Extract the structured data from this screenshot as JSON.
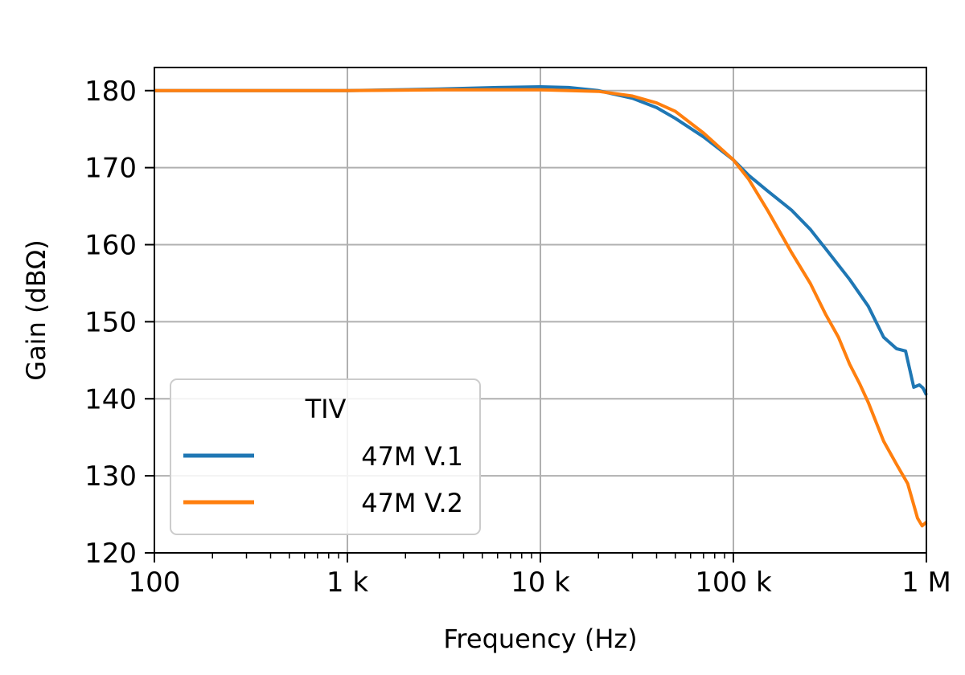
{
  "chart_data": {
    "type": "line",
    "title": "",
    "xlabel": "Frequency (Hz)",
    "ylabel": "Gain (dBΩ)",
    "x_scale": "log",
    "xlim": [
      100,
      1000000
    ],
    "ylim": [
      120,
      183
    ],
    "grid": true,
    "x_ticks": [
      100,
      1000,
      10000,
      100000,
      1000000
    ],
    "x_tick_labels": [
      "100",
      "1 k",
      "10 k",
      "100 k",
      "1 M"
    ],
    "y_ticks": [
      120,
      130,
      140,
      150,
      160,
      170,
      180
    ],
    "y_tick_labels": [
      "120",
      "130",
      "140",
      "150",
      "160",
      "170",
      "180"
    ],
    "legend": {
      "title": "TIV",
      "placement": "lower-left",
      "entries": [
        "47M V.1",
        "47M V.2"
      ]
    },
    "series": [
      {
        "name": "47M V.1",
        "color": "#1f77b4",
        "x": [
          100,
          1000,
          3000,
          6000,
          10000,
          14000,
          20000,
          30000,
          40000,
          50000,
          70000,
          100000,
          120000,
          150000,
          200000,
          250000,
          300000,
          400000,
          500000,
          600000,
          700000,
          780000,
          860000,
          920000,
          960000,
          1000000
        ],
        "y": [
          180,
          180,
          180.2,
          180.4,
          180.5,
          180.4,
          180,
          179,
          177.8,
          176.4,
          174,
          171,
          169,
          167,
          164.5,
          162,
          159.5,
          155.5,
          152,
          148,
          146.5,
          146.2,
          141.5,
          141.8,
          141.4,
          140.5
        ]
      },
      {
        "name": "47M V.2",
        "color": "#ff7f0e",
        "x": [
          100,
          1000,
          3000,
          10000,
          20000,
          30000,
          40000,
          50000,
          70000,
          100000,
          120000,
          150000,
          200000,
          250000,
          300000,
          350000,
          400000,
          450000,
          500000,
          600000,
          700000,
          800000,
          900000,
          950000,
          1000000
        ],
        "y": [
          180,
          180,
          180.1,
          180.1,
          179.9,
          179.3,
          178.4,
          177.3,
          174.5,
          171,
          168.5,
          164.5,
          159,
          155,
          151,
          148,
          144.5,
          142,
          139.5,
          134.5,
          131.5,
          129,
          124.5,
          123.5,
          124
        ]
      }
    ]
  }
}
